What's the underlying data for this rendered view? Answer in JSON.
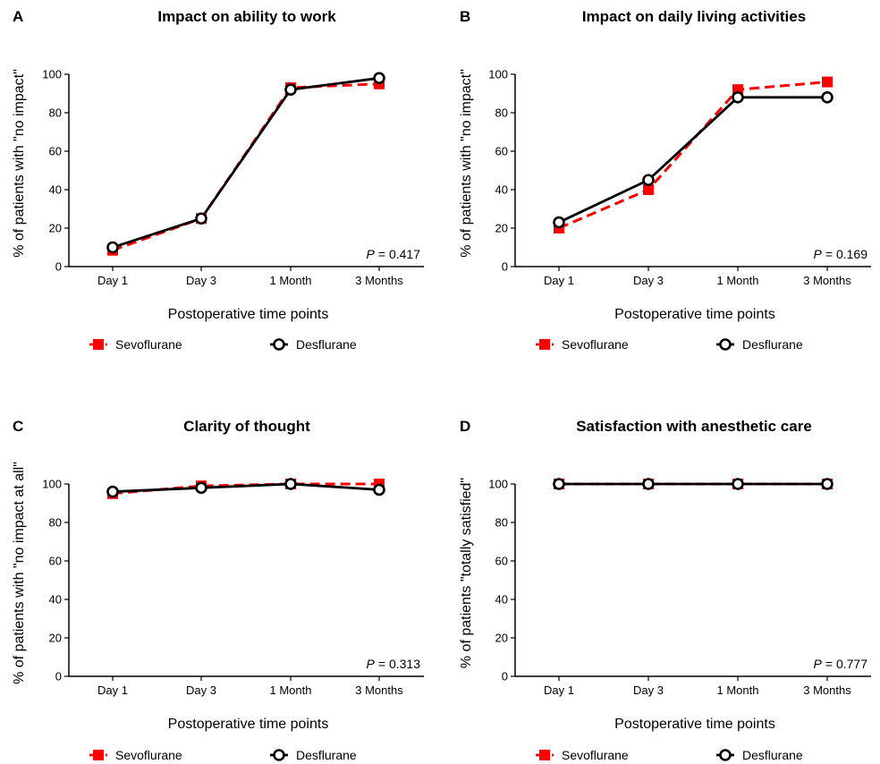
{
  "colors": {
    "sevoflurane": "#ff0000",
    "desflurane": "#000000"
  },
  "chart_data": [
    {
      "panel": "A",
      "type": "line",
      "title": "Impact on ability to work",
      "xlabel": "Postoperative time points",
      "ylabel": "% of patients with \"no impact\"",
      "categories": [
        "Day 1",
        "Day 3",
        "1 Month",
        "3 Months"
      ],
      "yticks": [
        "0",
        "20",
        "40",
        "60",
        "80",
        "100"
      ],
      "ylim": [
        0,
        100
      ],
      "series": [
        {
          "name": "Sevoflurane",
          "values": [
            8.5,
            25,
            93,
            95
          ],
          "color": "#ff0000",
          "marker": "square",
          "dash": "dashed"
        },
        {
          "name": "Desflurane",
          "values": [
            10,
            25,
            92,
            98
          ],
          "color": "#000000",
          "marker": "circle",
          "dash": "solid"
        }
      ],
      "p_label": "P",
      "p_value": "= 0.417"
    },
    {
      "panel": "B",
      "type": "line",
      "title": "Impact on daily living activities",
      "xlabel": "Postoperative time points",
      "ylabel": "% of patients with \"no impact\"",
      "categories": [
        "Day 1",
        "Day 3",
        "1 Month",
        "3 Months"
      ],
      "yticks": [
        "0",
        "20",
        "40",
        "60",
        "80",
        "100"
      ],
      "ylim": [
        0,
        100
      ],
      "series": [
        {
          "name": "Sevoflurane",
          "values": [
            20,
            40,
            92,
            96
          ],
          "color": "#ff0000",
          "marker": "square",
          "dash": "dashed"
        },
        {
          "name": "Desflurane",
          "values": [
            23,
            45,
            88,
            88
          ],
          "color": "#000000",
          "marker": "circle",
          "dash": "solid"
        }
      ],
      "p_label": "P",
      "p_value": "= 0.169"
    },
    {
      "panel": "C",
      "type": "line",
      "title": "Clarity of thought",
      "xlabel": "Postoperative time points",
      "ylabel": "% of patients with \"no impact at all\"",
      "categories": [
        "Day 1",
        "Day 3",
        "1 Month",
        "3 Months"
      ],
      "yticks": [
        "0",
        "20",
        "40",
        "60",
        "80",
        "100"
      ],
      "ylim": [
        0,
        100
      ],
      "series": [
        {
          "name": "Sevoflurane",
          "values": [
            95,
            99,
            100,
            100
          ],
          "color": "#ff0000",
          "marker": "square",
          "dash": "dashed"
        },
        {
          "name": "Desflurane",
          "values": [
            96,
            98,
            100,
            97
          ],
          "color": "#000000",
          "marker": "circle",
          "dash": "solid"
        }
      ],
      "p_label": "P",
      "p_value": "= 0.313"
    },
    {
      "panel": "D",
      "type": "line",
      "title": "Satisfaction with anesthetic care",
      "xlabel": "Postoperative time points",
      "ylabel": "% of patients \"totally satisfied\"",
      "categories": [
        "Day 1",
        "Day 3",
        "1 Month",
        "3 Months"
      ],
      "yticks": [
        "0",
        "20",
        "40",
        "60",
        "80",
        "100"
      ],
      "ylim": [
        0,
        100
      ],
      "series": [
        {
          "name": "Sevoflurane",
          "values": [
            100,
            100,
            100,
            100
          ],
          "color": "#ff0000",
          "marker": "square",
          "dash": "dashed"
        },
        {
          "name": "Desflurane",
          "values": [
            100,
            100,
            100,
            100
          ],
          "color": "#000000",
          "marker": "circle",
          "dash": "solid"
        }
      ],
      "p_label": "P",
      "p_value": "= 0.777"
    }
  ]
}
